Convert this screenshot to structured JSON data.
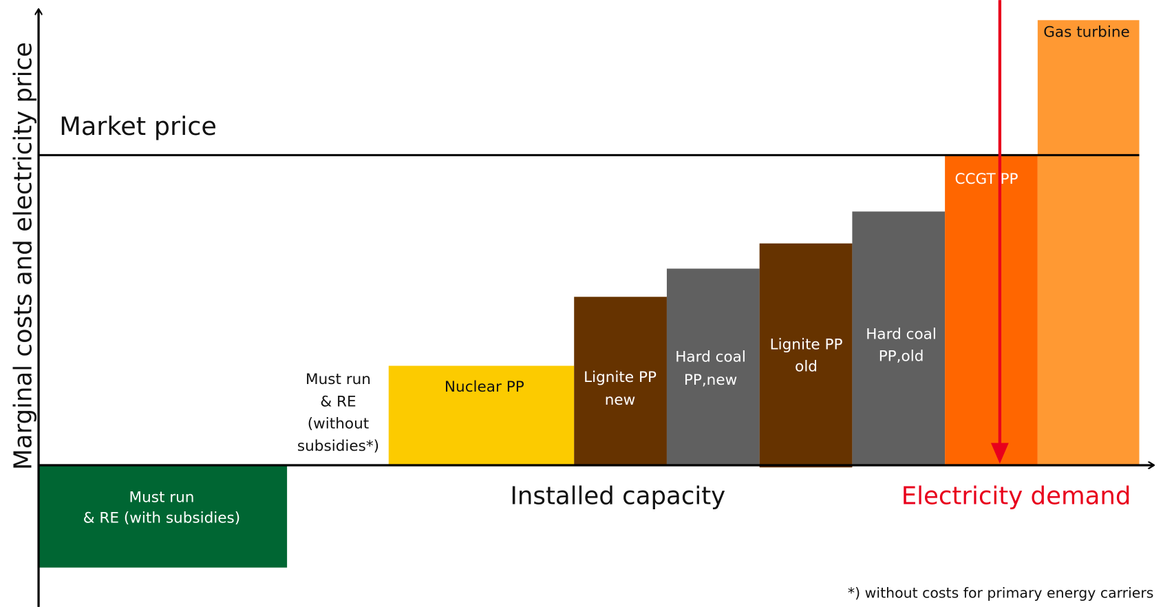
{
  "axes": {
    "y_label": "Marginal costs and electricity price",
    "x_label": "Installed capacity",
    "market_price": "Market price",
    "demand": "Electricity demand"
  },
  "blocks": [
    {
      "lines": [
        "Must run",
        "& RE (with subsidies)"
      ]
    },
    {
      "lines": [
        "Must run",
        "& RE",
        "(without",
        "subsidies*)"
      ]
    },
    {
      "lines": [
        "Nuclear PP"
      ]
    },
    {
      "lines": [
        "Lignite PP",
        "new"
      ]
    },
    {
      "lines": [
        "Hard coal",
        "PP,new"
      ]
    },
    {
      "lines": [
        "Lignite PP",
        "old"
      ]
    },
    {
      "lines": [
        "Hard coal",
        "PP,old"
      ]
    },
    {
      "lines": [
        "CCGT PP"
      ]
    },
    {
      "lines": [
        "Gas turbine"
      ]
    }
  ],
  "footnote": "*) without costs for primary energy carriers"
}
